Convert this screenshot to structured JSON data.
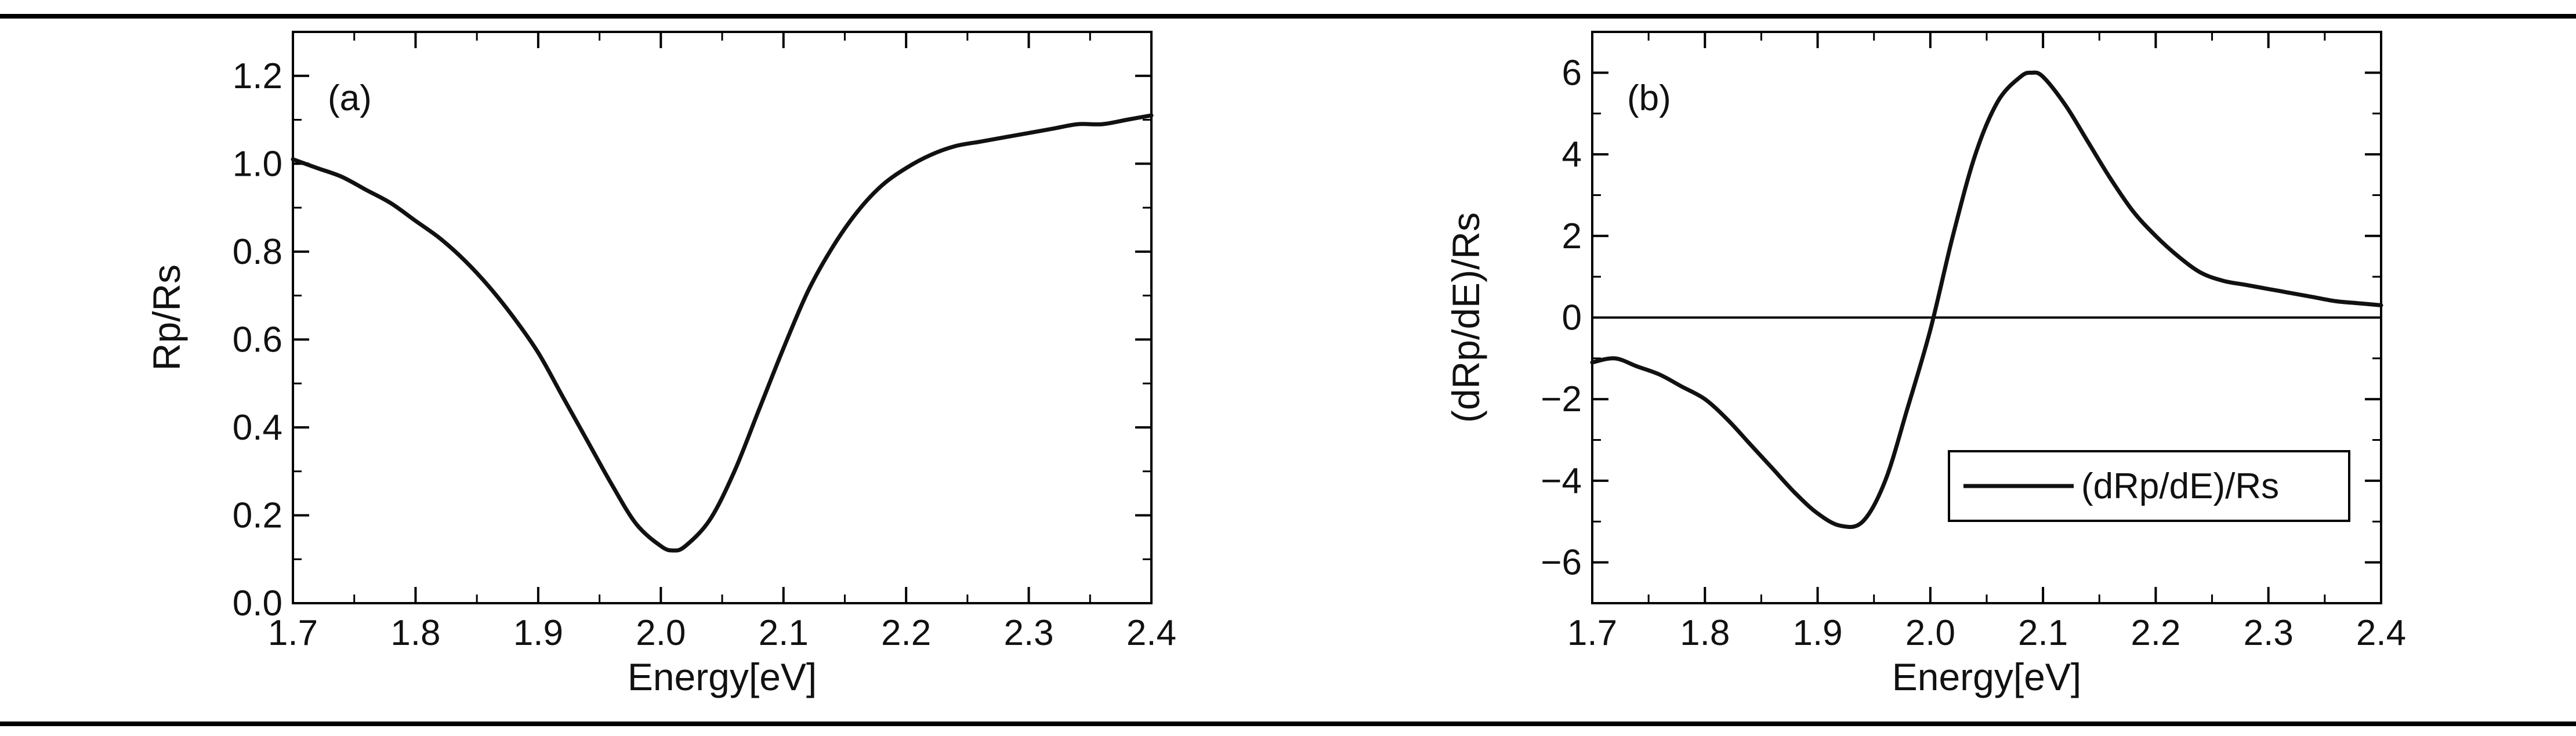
{
  "chart_data": [
    {
      "type": "line",
      "panel_label": "(a)",
      "xlabel": "Energy[eV]",
      "ylabel": "Rp/Rs",
      "xlim": [
        1.7,
        2.4
      ],
      "ylim": [
        0.0,
        1.3
      ],
      "xticks": [
        "1.7",
        "1.8",
        "1.9",
        "2.0",
        "2.1",
        "2.2",
        "2.3",
        "2.4"
      ],
      "yticks": [
        "0.0",
        "0.2",
        "0.4",
        "0.6",
        "0.8",
        "1.0",
        "1.2"
      ],
      "x": [
        1.7,
        1.72,
        1.74,
        1.76,
        1.78,
        1.8,
        1.82,
        1.84,
        1.86,
        1.88,
        1.9,
        1.92,
        1.94,
        1.96,
        1.98,
        2.0,
        2.01,
        2.02,
        2.04,
        2.06,
        2.08,
        2.1,
        2.12,
        2.14,
        2.16,
        2.18,
        2.2,
        2.22,
        2.24,
        2.26,
        2.28,
        2.3,
        2.32,
        2.34,
        2.36,
        2.38,
        2.4
      ],
      "series": [
        {
          "color": "#111111",
          "values": [
            1.01,
            0.99,
            0.97,
            0.94,
            0.91,
            0.87,
            0.83,
            0.78,
            0.72,
            0.65,
            0.57,
            0.47,
            0.37,
            0.27,
            0.18,
            0.13,
            0.12,
            0.13,
            0.19,
            0.3,
            0.44,
            0.58,
            0.71,
            0.81,
            0.89,
            0.95,
            0.99,
            1.02,
            1.04,
            1.05,
            1.06,
            1.07,
            1.08,
            1.09,
            1.09,
            1.1,
            1.11
          ]
        }
      ]
    },
    {
      "type": "line",
      "panel_label": "(b)",
      "xlabel": "Energy[eV]",
      "ylabel": "(dRp/dE)/Rs",
      "xlim": [
        1.7,
        2.4
      ],
      "ylim": [
        -7,
        7
      ],
      "xticks": [
        "1.7",
        "1.8",
        "1.9",
        "2.0",
        "2.1",
        "2.2",
        "2.3",
        "2.4"
      ],
      "yticks": [
        "-6",
        "-4",
        "-2",
        "0",
        "2",
        "4",
        "6"
      ],
      "zero_line": true,
      "legend_position": "bottom-right",
      "x": [
        1.7,
        1.72,
        1.74,
        1.76,
        1.78,
        1.8,
        1.82,
        1.84,
        1.86,
        1.88,
        1.9,
        1.92,
        1.94,
        1.96,
        1.98,
        2.0,
        2.02,
        2.04,
        2.06,
        2.08,
        2.09,
        2.1,
        2.12,
        2.14,
        2.16,
        2.18,
        2.2,
        2.22,
        2.24,
        2.26,
        2.28,
        2.3,
        2.32,
        2.34,
        2.36,
        2.38,
        2.4
      ],
      "series": [
        {
          "name": "(dRp/dE)/Rs",
          "color": "#111111",
          "values": [
            -1.1,
            -1.0,
            -1.2,
            -1.4,
            -1.7,
            -2.0,
            -2.5,
            -3.1,
            -3.7,
            -4.3,
            -4.8,
            -5.1,
            -5.0,
            -4.0,
            -2.2,
            -0.3,
            2.0,
            4.0,
            5.3,
            5.9,
            6.0,
            5.9,
            5.2,
            4.3,
            3.4,
            2.6,
            2.0,
            1.5,
            1.1,
            0.9,
            0.8,
            0.7,
            0.6,
            0.5,
            0.4,
            0.35,
            0.3
          ]
        }
      ]
    }
  ]
}
